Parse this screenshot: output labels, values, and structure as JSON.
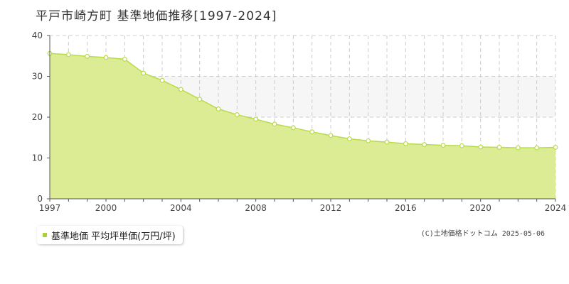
{
  "title": "平戸市崎方町 基準地価推移[1997-2024]",
  "colors": {
    "area_fill": "#dcec94",
    "line": "#b9db4a",
    "band": "#f6f6f6",
    "grid": "#cccccc",
    "axis": "#555555",
    "legend_swatch": "#a9d13a"
  },
  "legend": {
    "label": "基準地価 平均坪単価(万円/坪)"
  },
  "copyright": "(C)土地価格ドットコム 2025-05-06",
  "chart_data": {
    "type": "area",
    "title": "平戸市崎方町 基準地価推移[1997-2024]",
    "xlabel": "",
    "ylabel": "",
    "xlim": [
      1997,
      2024
    ],
    "ylim": [
      0,
      40
    ],
    "x_ticks": [
      1997,
      2000,
      2004,
      2008,
      2012,
      2016,
      2020,
      2024
    ],
    "y_ticks": [
      0,
      10,
      20,
      30,
      40
    ],
    "grid": true,
    "legend_position": "bottom-left",
    "series": [
      {
        "name": "基準地価 平均坪単価(万円/坪)",
        "x": [
          1997,
          1998,
          1999,
          2000,
          2001,
          2002,
          2003,
          2004,
          2005,
          2006,
          2007,
          2008,
          2009,
          2010,
          2011,
          2012,
          2013,
          2014,
          2015,
          2016,
          2017,
          2018,
          2019,
          2020,
          2021,
          2022,
          2023,
          2024
        ],
        "values": [
          35.6,
          35.3,
          34.9,
          34.6,
          34.2,
          30.8,
          29.0,
          26.8,
          24.4,
          22.0,
          20.6,
          19.5,
          18.3,
          17.4,
          16.4,
          15.5,
          14.7,
          14.2,
          13.9,
          13.5,
          13.3,
          13.1,
          13.0,
          12.7,
          12.6,
          12.5,
          12.5,
          12.6
        ]
      }
    ]
  }
}
